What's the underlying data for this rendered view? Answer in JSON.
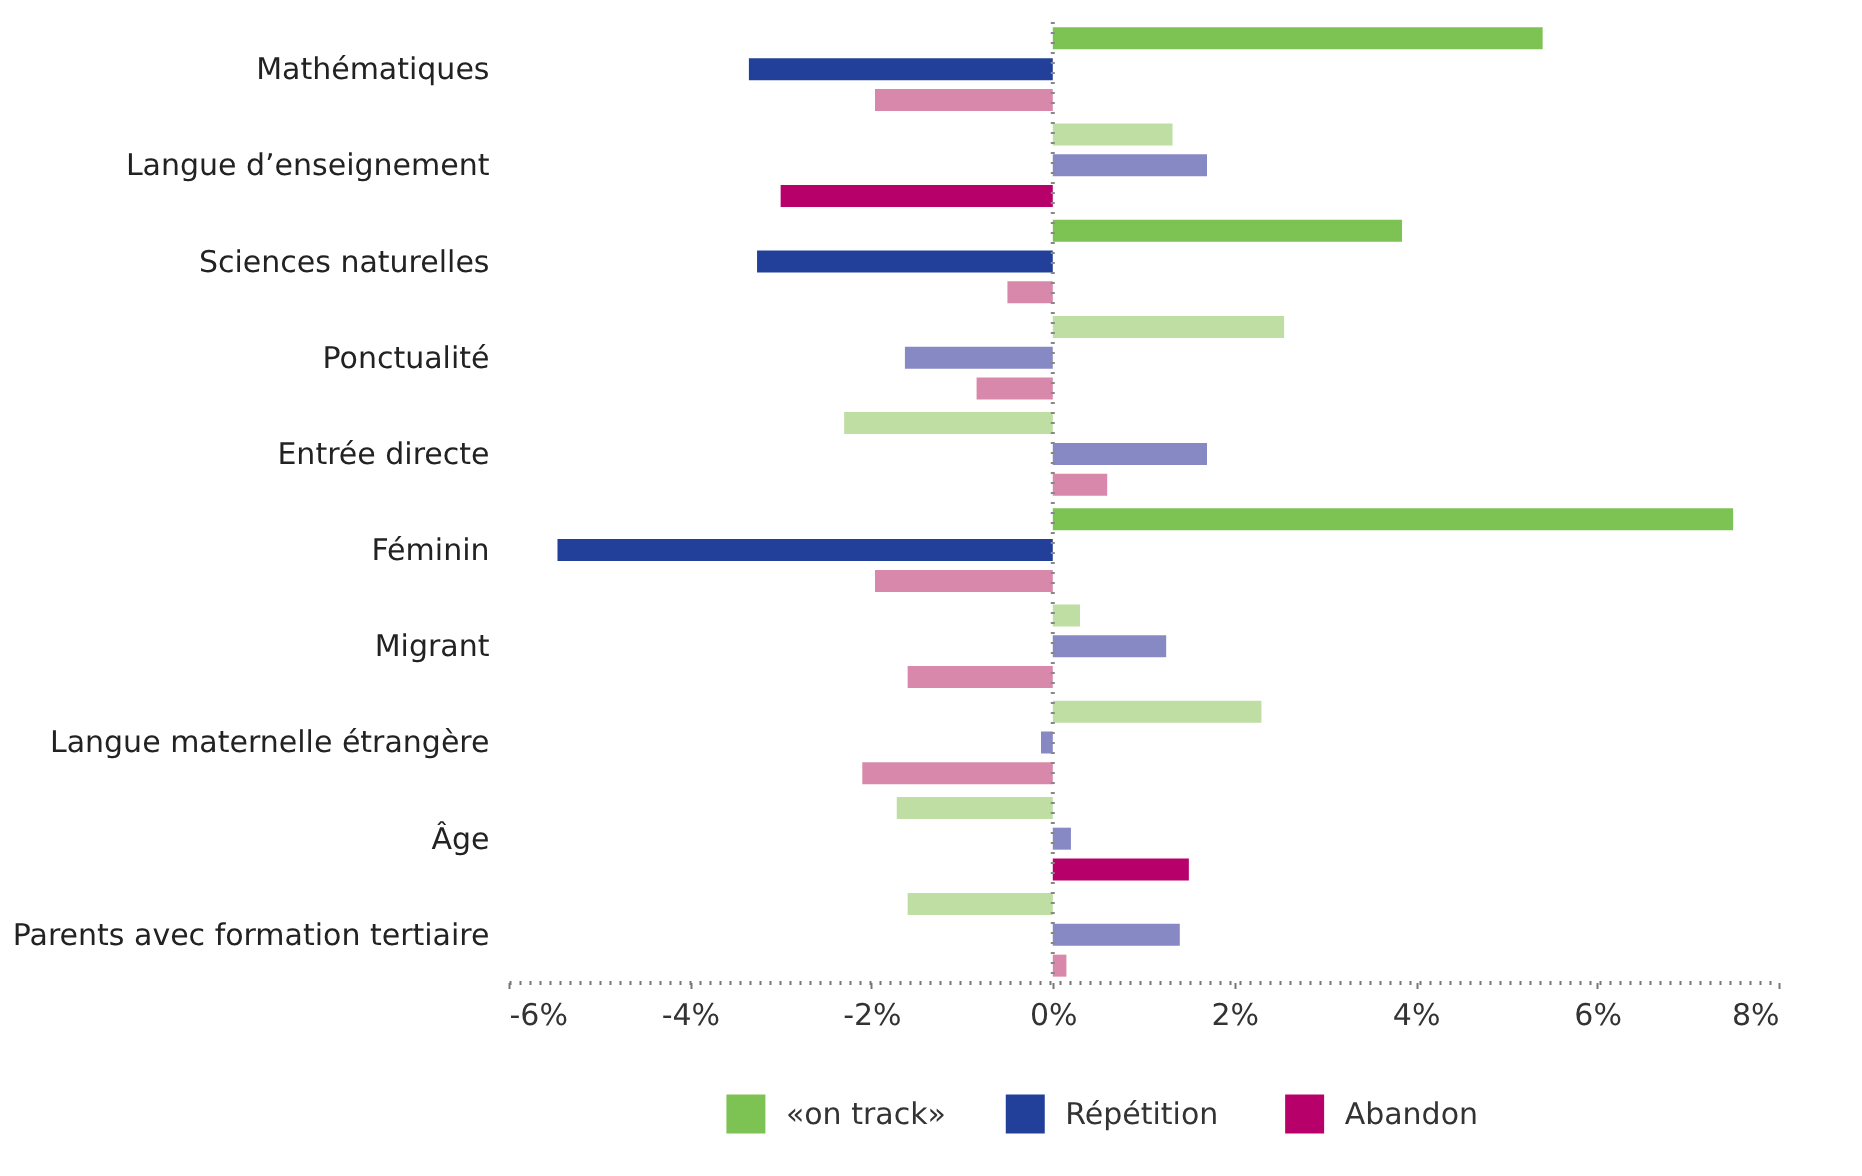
{
  "chart_data": {
    "type": "bar",
    "orientation": "horizontal",
    "categories": [
      "Mathématiques",
      "Langue d’enseignement",
      "Sciences naturelles",
      "Ponctualité",
      "Entrée directe",
      "Féminin",
      "Migrant",
      "Langue maternelle étrangère",
      "Âge",
      "Parents avec formation tertiaire"
    ],
    "series": [
      {
        "name": "«on track»",
        "color": "#7dc353",
        "values": [
          5.4,
          1.32,
          3.85,
          2.55,
          -2.3,
          7.5,
          0.3,
          2.3,
          -1.72,
          -1.6
        ],
        "colors": [
          "#7dc353",
          "#bfdea4",
          "#7dc353",
          "#bfdea4",
          "#bfdea4",
          "#7dc353",
          "#bfdea4",
          "#bfdea4",
          "#bfdea4",
          "#bfdea4"
        ]
      },
      {
        "name": "Répétition",
        "color": "#22409a",
        "values": [
          -3.35,
          1.7,
          -3.26,
          -1.63,
          1.7,
          -5.46,
          1.25,
          -0.13,
          0.2,
          1.4
        ],
        "colors": [
          "#22409a",
          "#8789c4",
          "#22409a",
          "#8789c4",
          "#8789c4",
          "#22409a",
          "#8789c4",
          "#8789c4",
          "#8789c4",
          "#8789c4"
        ]
      },
      {
        "name": "Abandon",
        "color": "#b8006b",
        "values": [
          -1.96,
          -3.0,
          -0.5,
          -0.84,
          0.6,
          -1.96,
          -1.6,
          -2.1,
          1.5,
          0.15
        ],
        "colors": [
          "#d888aa",
          "#b8006b",
          "#d888aa",
          "#d888aa",
          "#d888aa",
          "#d888aa",
          "#d888aa",
          "#d888aa",
          "#b8006b",
          "#d888aa"
        ]
      }
    ],
    "xlim": [
      -6,
      8
    ],
    "xticks": [
      {
        "value": -6,
        "label": "-6%"
      },
      {
        "value": -4,
        "label": "-4%"
      },
      {
        "value": -2,
        "label": "-2%"
      },
      {
        "value": 0,
        "label": "0%"
      },
      {
        "value": 2,
        "label": "2%"
      },
      {
        "value": 4,
        "label": "4%"
      },
      {
        "value": 6,
        "label": "6%"
      },
      {
        "value": 8,
        "label": "8%"
      }
    ],
    "ref_lines": [
      {
        "axis": "x",
        "value": 0,
        "line_style": "dotted",
        "color": "#888888"
      }
    ],
    "grid": false,
    "legend": "bottom"
  }
}
